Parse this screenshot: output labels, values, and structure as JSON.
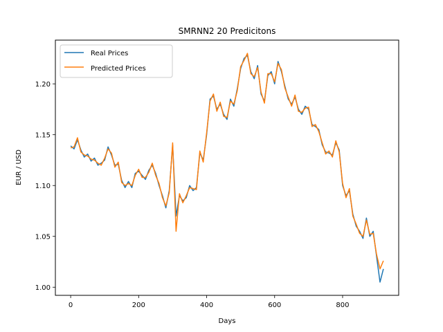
{
  "chart_data": {
    "type": "line",
    "title": "SMRNN2 20 Predicitons",
    "xlabel": "Days",
    "ylabel": "EUR / USD",
    "xlim": [
      -45,
      965
    ],
    "ylim": [
      0.992,
      1.243
    ],
    "xticks": [
      0,
      200,
      400,
      600,
      800
    ],
    "yticks": [
      1.0,
      1.05,
      1.1,
      1.15,
      1.2
    ],
    "ytick_labels": [
      "1.00",
      "1.05",
      "1.10",
      "1.15",
      "1.20"
    ],
    "grid": false,
    "legend_position": "top-left",
    "series": [
      {
        "name": "Real Prices",
        "color": "#1f77b4",
        "x": [
          0,
          10,
          20,
          30,
          40,
          50,
          60,
          70,
          80,
          90,
          100,
          110,
          120,
          130,
          140,
          150,
          160,
          170,
          180,
          190,
          200,
          210,
          220,
          230,
          240,
          250,
          260,
          270,
          280,
          290,
          300,
          310,
          320,
          330,
          340,
          350,
          360,
          370,
          380,
          390,
          400,
          410,
          420,
          430,
          440,
          450,
          460,
          470,
          480,
          490,
          500,
          510,
          520,
          530,
          540,
          550,
          560,
          570,
          580,
          590,
          600,
          610,
          620,
          630,
          640,
          650,
          660,
          670,
          680,
          690,
          700,
          710,
          720,
          730,
          740,
          750,
          760,
          770,
          780,
          790,
          800,
          810,
          820,
          830,
          840,
          850,
          860,
          870,
          880,
          890,
          900,
          910,
          920
        ],
        "values": [
          1.139,
          1.136,
          1.145,
          1.135,
          1.128,
          1.131,
          1.124,
          1.127,
          1.12,
          1.122,
          1.125,
          1.138,
          1.13,
          1.12,
          1.121,
          1.105,
          1.098,
          1.104,
          1.098,
          1.112,
          1.114,
          1.11,
          1.106,
          1.115,
          1.12,
          1.112,
          1.1,
          1.09,
          1.078,
          1.095,
          1.14,
          1.07,
          1.09,
          1.085,
          1.088,
          1.1,
          1.095,
          1.098,
          1.132,
          1.125,
          1.15,
          1.185,
          1.188,
          1.175,
          1.18,
          1.17,
          1.165,
          1.185,
          1.178,
          1.195,
          1.215,
          1.225,
          1.228,
          1.212,
          1.205,
          1.218,
          1.19,
          1.183,
          1.208,
          1.212,
          1.2,
          1.222,
          1.212,
          1.198,
          1.185,
          1.18,
          1.187,
          1.175,
          1.17,
          1.178,
          1.175,
          1.16,
          1.158,
          1.155,
          1.14,
          1.133,
          1.132,
          1.13,
          1.142,
          1.135,
          1.1,
          1.09,
          1.095,
          1.072,
          1.06,
          1.055,
          1.048,
          1.068,
          1.05,
          1.055,
          1.03,
          1.005,
          1.018
        ],
        "z": 2
      },
      {
        "name": "Predicted Prices",
        "color": "#ff7f0e",
        "x": [
          0,
          10,
          20,
          30,
          40,
          50,
          60,
          70,
          80,
          90,
          100,
          110,
          120,
          130,
          140,
          150,
          160,
          170,
          180,
          190,
          200,
          210,
          220,
          230,
          240,
          250,
          260,
          270,
          280,
          290,
          300,
          310,
          320,
          330,
          340,
          350,
          360,
          370,
          380,
          390,
          400,
          410,
          420,
          430,
          440,
          450,
          460,
          470,
          480,
          490,
          500,
          510,
          520,
          530,
          540,
          550,
          560,
          570,
          580,
          590,
          600,
          610,
          620,
          630,
          640,
          650,
          660,
          670,
          680,
          690,
          700,
          710,
          720,
          730,
          740,
          750,
          760,
          770,
          780,
          790,
          800,
          810,
          820,
          830,
          840,
          850,
          860,
          870,
          880,
          890,
          900,
          910,
          920
        ],
        "values": [
          1.137,
          1.138,
          1.147,
          1.133,
          1.13,
          1.129,
          1.126,
          1.125,
          1.122,
          1.12,
          1.127,
          1.136,
          1.132,
          1.118,
          1.123,
          1.103,
          1.1,
          1.102,
          1.1,
          1.11,
          1.116,
          1.108,
          1.108,
          1.113,
          1.122,
          1.11,
          1.102,
          1.088,
          1.08,
          1.093,
          1.142,
          1.055,
          1.092,
          1.083,
          1.09,
          1.098,
          1.097,
          1.096,
          1.134,
          1.123,
          1.152,
          1.183,
          1.19,
          1.173,
          1.182,
          1.168,
          1.167,
          1.183,
          1.18,
          1.193,
          1.217,
          1.223,
          1.23,
          1.21,
          1.207,
          1.216,
          1.192,
          1.181,
          1.21,
          1.21,
          1.202,
          1.22,
          1.214,
          1.196,
          1.187,
          1.178,
          1.189,
          1.173,
          1.172,
          1.176,
          1.177,
          1.158,
          1.16,
          1.153,
          1.142,
          1.131,
          1.134,
          1.128,
          1.144,
          1.133,
          1.102,
          1.088,
          1.097,
          1.07,
          1.062,
          1.053,
          1.05,
          1.066,
          1.052,
          1.053,
          1.032,
          1.018,
          1.026
        ],
        "z": 3
      }
    ]
  }
}
